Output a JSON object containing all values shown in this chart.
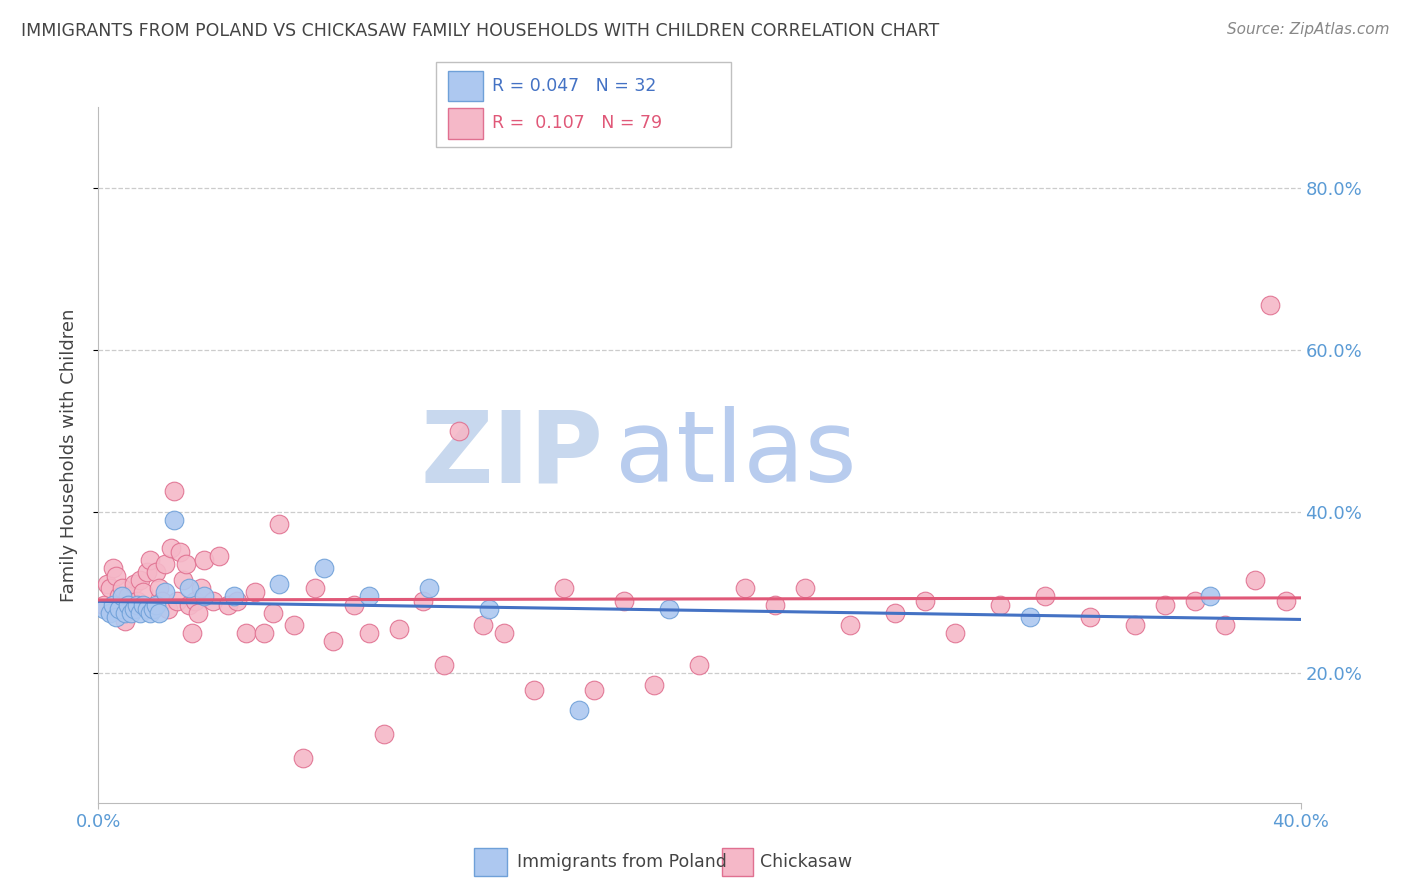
{
  "title": "IMMIGRANTS FROM POLAND VS CHICKASAW FAMILY HOUSEHOLDS WITH CHILDREN CORRELATION CHART",
  "source": "Source: ZipAtlas.com",
  "ylabel": "Family Households with Children",
  "ytick_labels": [
    "20.0%",
    "40.0%",
    "60.0%",
    "80.0%"
  ],
  "ytick_values": [
    0.2,
    0.4,
    0.6,
    0.8
  ],
  "xlim": [
    0.0,
    0.4
  ],
  "ylim": [
    0.04,
    0.9
  ],
  "blue_scatter_x": [
    0.002,
    0.004,
    0.005,
    0.006,
    0.007,
    0.008,
    0.009,
    0.01,
    0.011,
    0.012,
    0.013,
    0.014,
    0.015,
    0.016,
    0.017,
    0.018,
    0.019,
    0.02,
    0.022,
    0.025,
    0.03,
    0.035,
    0.045,
    0.06,
    0.075,
    0.09,
    0.11,
    0.13,
    0.16,
    0.19,
    0.31,
    0.37
  ],
  "blue_scatter_y": [
    0.28,
    0.275,
    0.285,
    0.27,
    0.28,
    0.295,
    0.275,
    0.285,
    0.275,
    0.28,
    0.285,
    0.275,
    0.285,
    0.28,
    0.275,
    0.28,
    0.285,
    0.275,
    0.3,
    0.39,
    0.305,
    0.295,
    0.295,
    0.31,
    0.33,
    0.295,
    0.305,
    0.28,
    0.155,
    0.28,
    0.27,
    0.295
  ],
  "pink_scatter_x": [
    0.002,
    0.003,
    0.004,
    0.005,
    0.006,
    0.007,
    0.008,
    0.009,
    0.01,
    0.011,
    0.012,
    0.013,
    0.014,
    0.015,
    0.016,
    0.017,
    0.018,
    0.019,
    0.02,
    0.021,
    0.022,
    0.023,
    0.024,
    0.025,
    0.026,
    0.027,
    0.028,
    0.029,
    0.03,
    0.031,
    0.032,
    0.033,
    0.034,
    0.035,
    0.038,
    0.04,
    0.043,
    0.046,
    0.049,
    0.052,
    0.055,
    0.058,
    0.06,
    0.065,
    0.068,
    0.072,
    0.078,
    0.085,
    0.09,
    0.095,
    0.1,
    0.108,
    0.115,
    0.12,
    0.128,
    0.135,
    0.145,
    0.155,
    0.165,
    0.175,
    0.185,
    0.2,
    0.215,
    0.225,
    0.235,
    0.25,
    0.265,
    0.275,
    0.285,
    0.3,
    0.315,
    0.33,
    0.345,
    0.355,
    0.365,
    0.375,
    0.385,
    0.39,
    0.395
  ],
  "pink_scatter_y": [
    0.285,
    0.31,
    0.305,
    0.33,
    0.32,
    0.295,
    0.305,
    0.265,
    0.295,
    0.28,
    0.31,
    0.29,
    0.315,
    0.3,
    0.325,
    0.34,
    0.28,
    0.325,
    0.305,
    0.29,
    0.335,
    0.28,
    0.355,
    0.425,
    0.29,
    0.35,
    0.315,
    0.335,
    0.285,
    0.25,
    0.29,
    0.275,
    0.305,
    0.34,
    0.29,
    0.345,
    0.285,
    0.29,
    0.25,
    0.3,
    0.25,
    0.275,
    0.385,
    0.26,
    0.095,
    0.305,
    0.24,
    0.285,
    0.25,
    0.125,
    0.255,
    0.29,
    0.21,
    0.5,
    0.26,
    0.25,
    0.18,
    0.305,
    0.18,
    0.29,
    0.185,
    0.21,
    0.305,
    0.285,
    0.305,
    0.26,
    0.275,
    0.29,
    0.25,
    0.285,
    0.295,
    0.27,
    0.26,
    0.285,
    0.29,
    0.26,
    0.315,
    0.655,
    0.29
  ],
  "blue_color": "#adc8f0",
  "blue_edge_color": "#6fa0d8",
  "pink_color": "#f5b8c8",
  "pink_edge_color": "#e07090",
  "blue_line_color": "#4472c4",
  "pink_line_color": "#e05878",
  "watermark_zip_color": "#c8d8ee",
  "watermark_atlas_color": "#b8ccee",
  "grid_color": "#cccccc",
  "title_color": "#444444",
  "tick_label_color": "#5b9bd5",
  "source_color": "#888888",
  "legend_text_blue": "R = 0.047  N = 32",
  "legend_text_pink": "R =  0.107  N = 79"
}
